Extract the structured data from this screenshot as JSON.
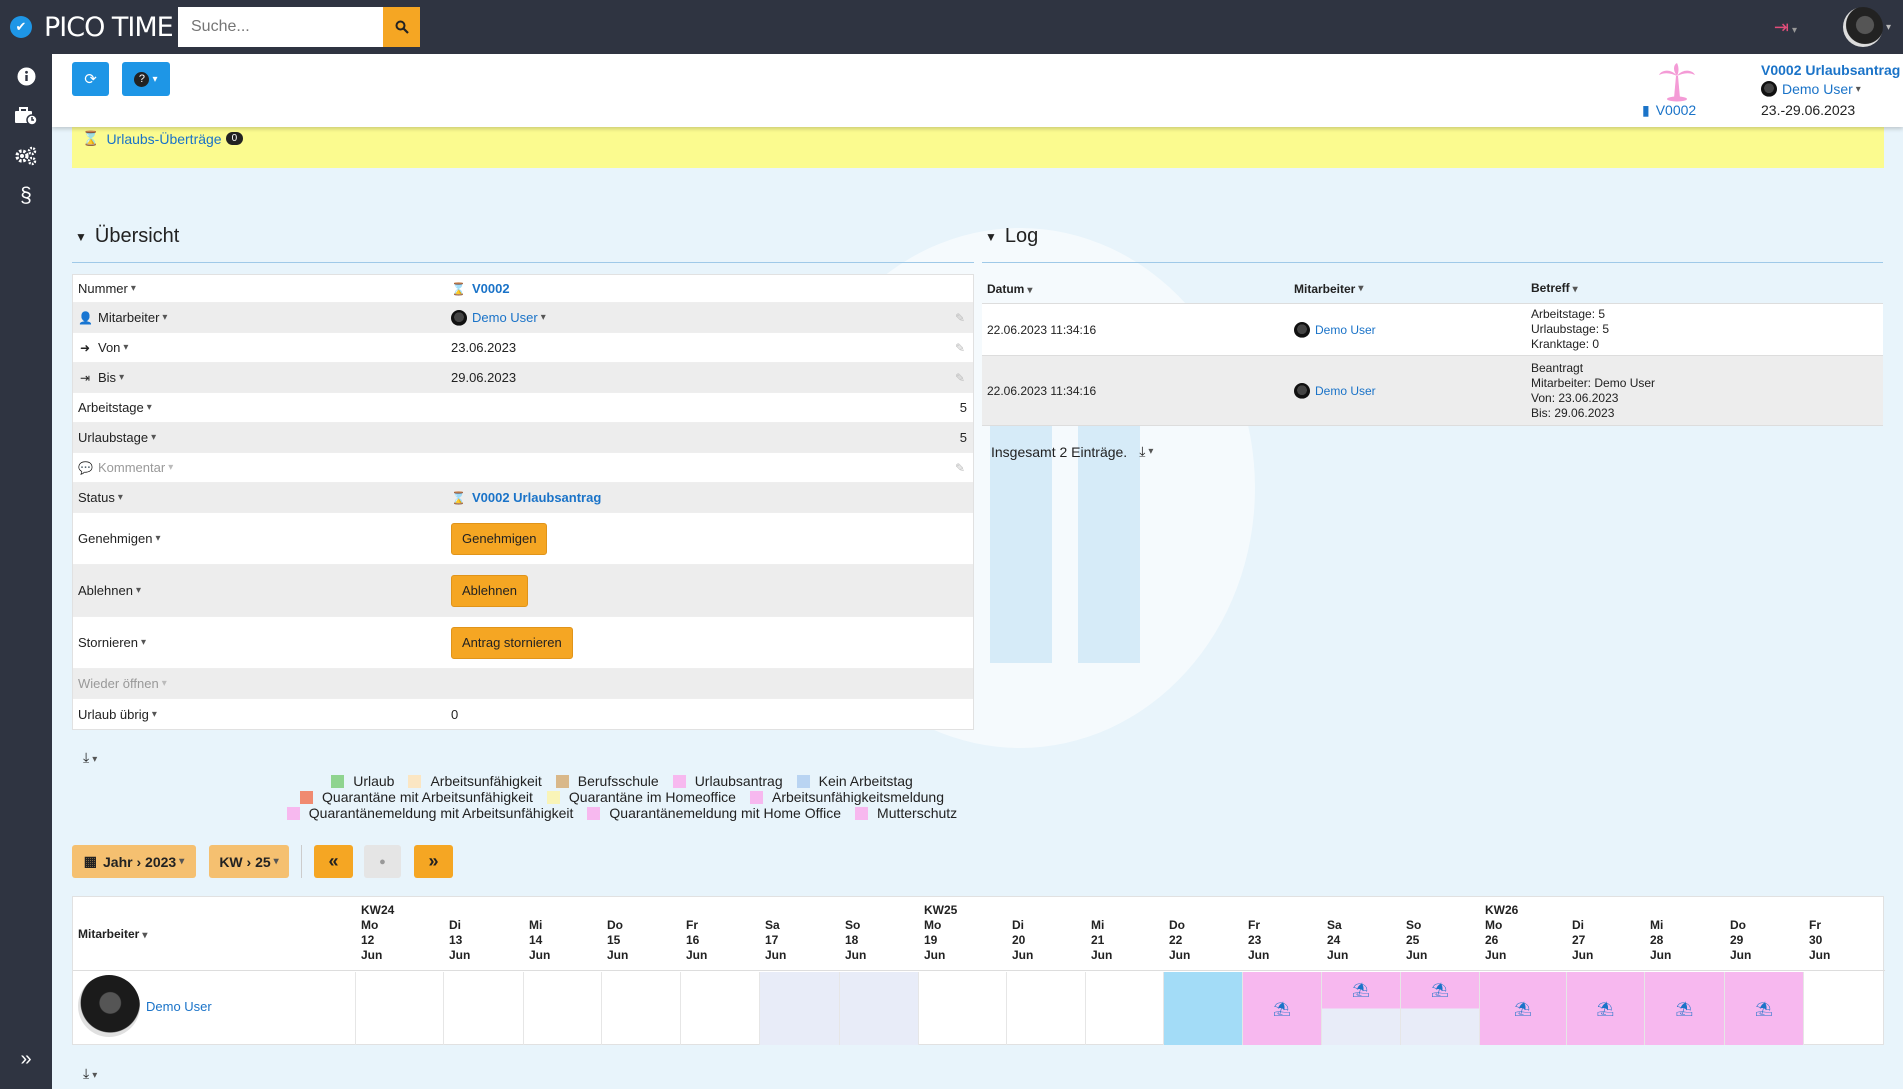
{
  "app": {
    "logo_text": "PICO TIME",
    "logo_check": "✔"
  },
  "search": {
    "placeholder": "Suche..."
  },
  "header": {
    "refresh_icon": "⟳",
    "help_icon": "?",
    "help_caret": "▾",
    "voucher_no": "V0002",
    "title": "V0002 Urlaubsantrag",
    "user": "Demo User",
    "date_range": "23.-29.06.2023"
  },
  "note": {
    "link_label": "Urlaubs-Überträge",
    "badge": "0"
  },
  "overview": {
    "title": "Übersicht",
    "rows": [
      {
        "key": "Nummer",
        "value": "V0002"
      },
      {
        "key": "Mitarbeiter",
        "value": "Demo User"
      },
      {
        "key": "Von",
        "value": "23.06.2023"
      },
      {
        "key": "Bis",
        "value": "29.06.2023"
      },
      {
        "key": "Arbeitstage",
        "value": "5"
      },
      {
        "key": "Urlaubstage",
        "value": "5"
      },
      {
        "key": "Kommentar",
        "value": ""
      },
      {
        "key": "Status",
        "value": "V0002 Urlaubsantrag"
      },
      {
        "key": "Genehmigen",
        "value": "Genehmigen"
      },
      {
        "key": "Ablehnen",
        "value": "Ablehnen"
      },
      {
        "key": "Stornieren",
        "value": "Antrag stornieren"
      },
      {
        "key": "Wieder öffnen",
        "value": ""
      },
      {
        "key": "Urlaub übrig",
        "value": "0"
      }
    ]
  },
  "log": {
    "title": "Log",
    "columns": [
      "Datum",
      "Mitarbeiter",
      "Betreff"
    ],
    "rows": [
      {
        "datum": "22.06.2023 11:34:16",
        "mitarbeiter": "Demo User",
        "betreff_lines": [
          "Arbeitstage: 5",
          "Urlaubstage: 5",
          "Kranktage: 0"
        ]
      },
      {
        "datum": "22.06.2023 11:34:16",
        "mitarbeiter": "Demo User",
        "betreff_lines": [
          "Beantragt",
          "Mitarbeiter: Demo User",
          "Von: 23.06.2023",
          "Bis: 29.06.2023"
        ]
      }
    ],
    "footer": "Insgesamt 2 Einträge."
  },
  "legend": {
    "lines": [
      [
        {
          "label": "Urlaub",
          "color": "#8fd48f"
        },
        {
          "label": "Arbeitsunfähigkeit",
          "color": "#fbe6c3"
        },
        {
          "label": "Berufsschule",
          "color": "#d9b88a"
        },
        {
          "label": "Urlaubsantrag",
          "color": "#f7b8ef"
        },
        {
          "label": "Kein Arbeitstag",
          "color": "#b9d4f2"
        }
      ],
      [
        {
          "label": "Quarantäne mit Arbeitsunfähigkeit",
          "color": "#f08a70"
        },
        {
          "label": "Quarantäne im Homeoffice",
          "color": "#f9f4b8"
        },
        {
          "label": "Arbeitsunfähigkeitsmeldung",
          "color": "#f7b8ef"
        }
      ],
      [
        {
          "label": "Quarantänemeldung mit Arbeitsunfähigkeit",
          "color": "#f7b8ef"
        },
        {
          "label": "Quarantänemeldung mit Home Office",
          "color": "#f7b8ef"
        },
        {
          "label": "Mutterschutz",
          "color": "#f7b8ef"
        }
      ]
    ]
  },
  "calendar": {
    "year_label": "Jahr › 2023",
    "week_label": "KW › 25",
    "prev_icon": "«",
    "today_icon": "📍",
    "next_icon": "»",
    "mitarbeiter_label": "Mitarbeiter",
    "user": "Demo User",
    "days": [
      {
        "kw": "KW24",
        "dow": "Mo",
        "day": "12",
        "mon": "Jun",
        "state": ""
      },
      {
        "kw": "",
        "dow": "Di",
        "day": "13",
        "mon": "Jun",
        "state": ""
      },
      {
        "kw": "",
        "dow": "Mi",
        "day": "14",
        "mon": "Jun",
        "state": ""
      },
      {
        "kw": "",
        "dow": "Do",
        "day": "15",
        "mon": "Jun",
        "state": ""
      },
      {
        "kw": "",
        "dow": "Fr",
        "day": "16",
        "mon": "Jun",
        "state": ""
      },
      {
        "kw": "",
        "dow": "Sa",
        "day": "17",
        "mon": "Jun",
        "state": "weekend"
      },
      {
        "kw": "",
        "dow": "So",
        "day": "18",
        "mon": "Jun",
        "state": "weekend"
      },
      {
        "kw": "KW25",
        "dow": "Mo",
        "day": "19",
        "mon": "Jun",
        "state": ""
      },
      {
        "kw": "",
        "dow": "Di",
        "day": "20",
        "mon": "Jun",
        "state": ""
      },
      {
        "kw": "",
        "dow": "Mi",
        "day": "21",
        "mon": "Jun",
        "state": ""
      },
      {
        "kw": "",
        "dow": "Do",
        "day": "22",
        "mon": "Jun",
        "state": "today"
      },
      {
        "kw": "",
        "dow": "Fr",
        "day": "23",
        "mon": "Jun",
        "state": "request"
      },
      {
        "kw": "",
        "dow": "Sa",
        "day": "24",
        "mon": "Jun",
        "state": "request-weekend"
      },
      {
        "kw": "",
        "dow": "So",
        "day": "25",
        "mon": "Jun",
        "state": "request-weekend"
      },
      {
        "kw": "KW26",
        "dow": "Mo",
        "day": "26",
        "mon": "Jun",
        "state": "request"
      },
      {
        "kw": "",
        "dow": "Di",
        "day": "27",
        "mon": "Jun",
        "state": "request"
      },
      {
        "kw": "",
        "dow": "Mi",
        "day": "28",
        "mon": "Jun",
        "state": "request"
      },
      {
        "kw": "",
        "dow": "Do",
        "day": "29",
        "mon": "Jun",
        "state": "request"
      },
      {
        "kw": "",
        "dow": "Fr",
        "day": "30",
        "mon": "Jun",
        "state": ""
      }
    ]
  }
}
